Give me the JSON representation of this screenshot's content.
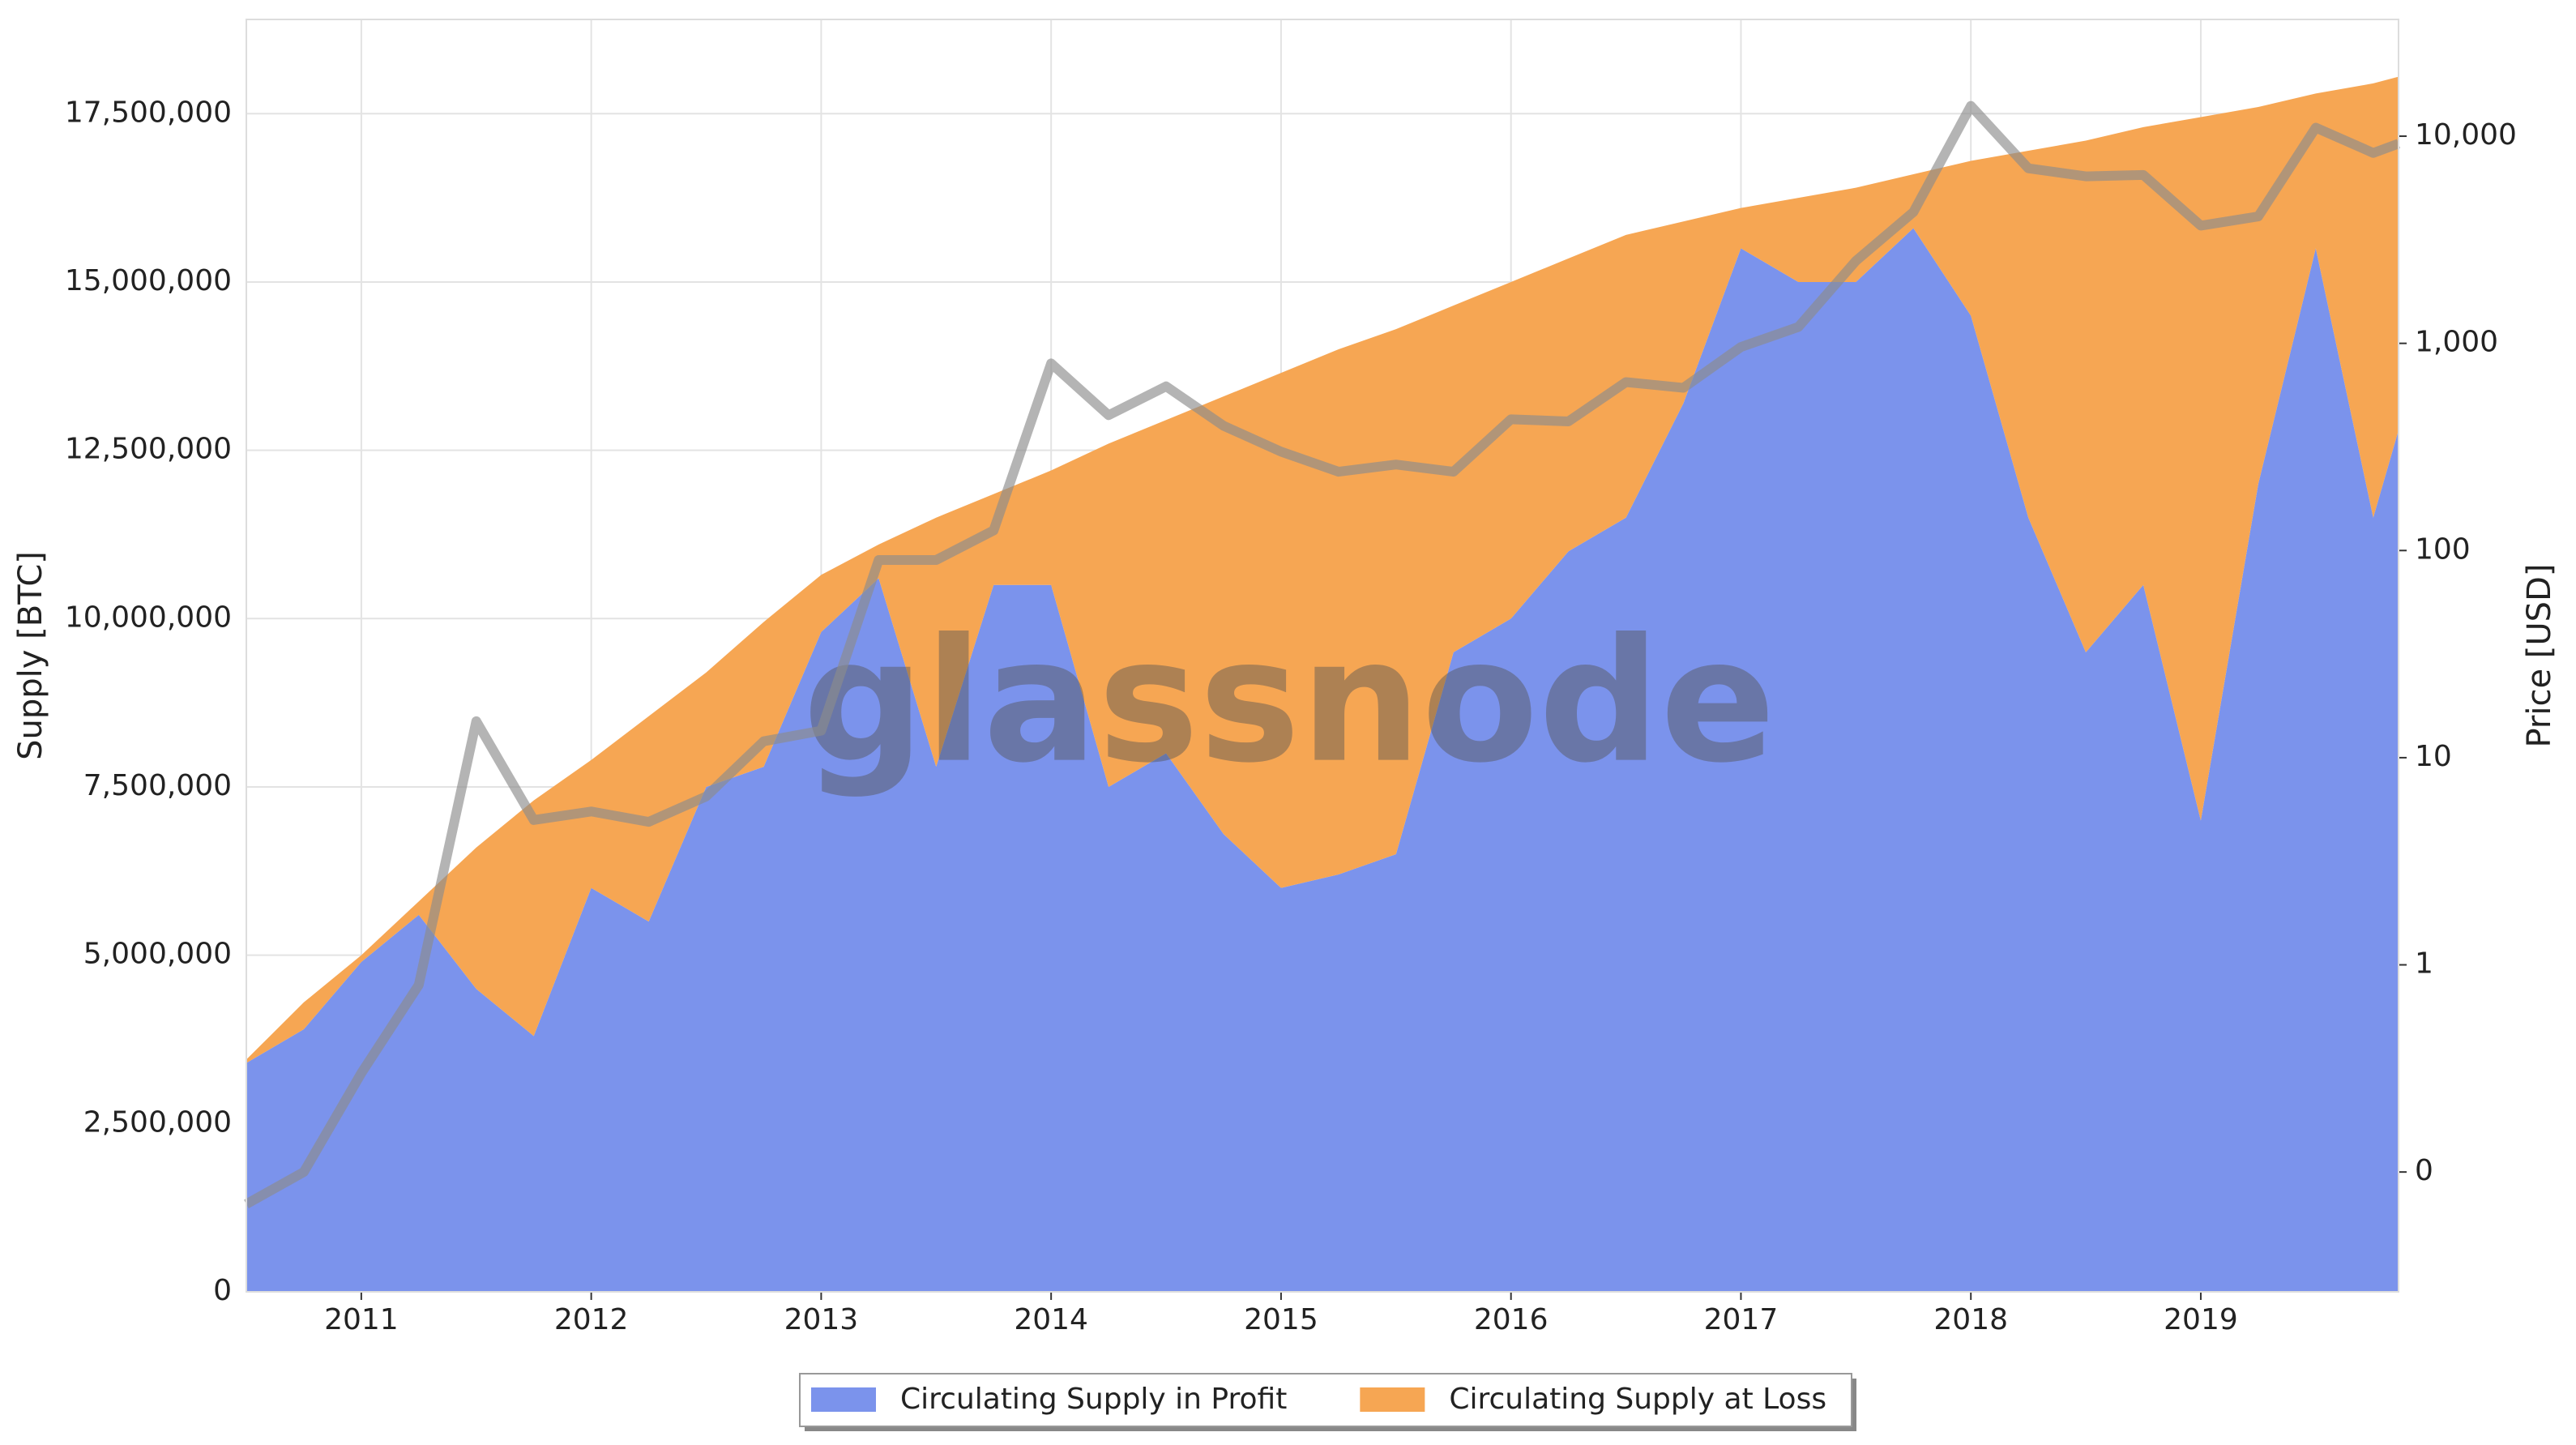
{
  "chart_data": {
    "type": "area",
    "watermark": "glassnode",
    "ylabel": "Supply [BTC]",
    "y2label": "Price [USD]",
    "grid": true,
    "y2log": true,
    "legend": "bottom",
    "x": [
      2010.5,
      2010.75,
      2011,
      2011.25,
      2011.5,
      2011.75,
      2012,
      2012.25,
      2012.5,
      2012.75,
      2013,
      2013.25,
      2013.5,
      2013.75,
      2014,
      2014.25,
      2014.5,
      2014.75,
      2015,
      2015.25,
      2015.5,
      2015.75,
      2016,
      2016.25,
      2016.5,
      2016.75,
      2017,
      2017.25,
      2017.5,
      2017.75,
      2018,
      2018.25,
      2018.5,
      2018.75,
      2019,
      2019.25,
      2019.5,
      2019.75,
      2019.86
    ],
    "xlim": [
      2010.5,
      2019.86
    ],
    "xticks": [
      2011,
      2012,
      2013,
      2014,
      2015,
      2016,
      2017,
      2018,
      2019
    ],
    "ylim": [
      0,
      18900000
    ],
    "yticks": [
      {
        "value": 0,
        "label": "0"
      },
      {
        "value": 2500000,
        "label": "2,500,000"
      },
      {
        "value": 5000000,
        "label": "5,000,000"
      },
      {
        "value": 7500000,
        "label": "7,500,000"
      },
      {
        "value": 10000000,
        "label": "10,000,000"
      },
      {
        "value": 12500000,
        "label": "12,500,000"
      },
      {
        "value": 15000000,
        "label": "15,000,000"
      },
      {
        "value": 17500000,
        "label": "17,500,000"
      }
    ],
    "y2lim": [
      0.0264,
      36600
    ],
    "y2ticks": [
      {
        "value": 0.1,
        "label": "0"
      },
      1,
      10,
      100,
      {
        "value": 1000,
        "label": "1,000"
      },
      {
        "value": 10000,
        "label": "10,000"
      }
    ],
    "series": [
      {
        "name": "Circulating Supply in Profit",
        "color": "#7b93ec",
        "values": [
          3400000,
          3900000,
          4900000,
          5600000,
          4500000,
          3800000,
          6000000,
          5500000,
          7500000,
          7800000,
          9800000,
          10600000,
          7800000,
          10500000,
          10500000,
          7500000,
          8000000,
          6800000,
          6000000,
          6200000,
          6500000,
          9500000,
          10000000,
          11000000,
          11500000,
          13200000,
          15500000,
          15000000,
          15000000,
          15800000,
          14500000,
          11500000,
          9500000,
          10500000,
          7000000,
          12000000,
          15500000,
          11500000,
          12800000
        ]
      },
      {
        "name": "Circulating Supply at Loss",
        "color": "#f6a653",
        "values": [
          50000,
          400000,
          100000,
          200000,
          2100000,
          3500000,
          1900000,
          3050000,
          1700000,
          2150000,
          850000,
          500000,
          3700000,
          1350000,
          1700000,
          5100000,
          4950000,
          6500000,
          7650000,
          7800000,
          7800000,
          5150000,
          5000000,
          4350000,
          4200000,
          2700000,
          600000,
          1250000,
          1400000,
          800000,
          2300000,
          5450000,
          7600000,
          6800000,
          10450000,
          5600000,
          2300000,
          6450000,
          5250000
        ]
      },
      {
        "type": "line",
        "axis": "y2",
        "color": "#8c8c8c",
        "values": [
          0.07,
          0.1,
          0.3,
          0.8,
          15,
          5,
          5.5,
          4.9,
          6.5,
          12,
          13.5,
          90,
          90,
          125,
          800,
          450,
          620,
          400,
          300,
          240,
          260,
          240,
          430,
          420,
          650,
          610,
          960,
          1200,
          2500,
          4300,
          14000,
          7000,
          6400,
          6500,
          3700,
          4100,
          11000,
          8300,
          9200
        ]
      }
    ]
  }
}
